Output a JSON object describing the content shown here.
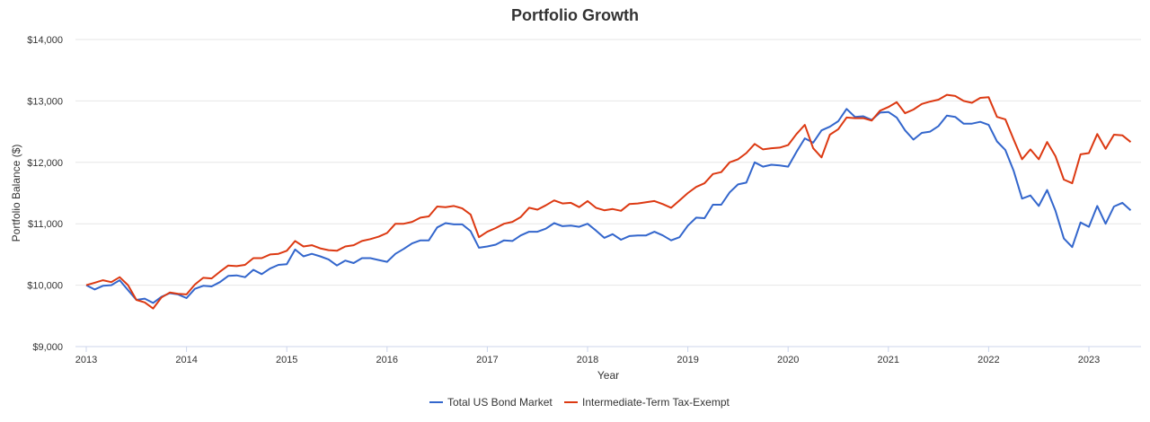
{
  "chart_data": {
    "type": "line",
    "title": "Portfolio Growth",
    "xlabel": "Year",
    "ylabel": "Portfolio Balance ($)",
    "ylim": [
      9000,
      14000
    ],
    "yticks": [
      "$9,000",
      "$10,000",
      "$11,000",
      "$12,000",
      "$13,000",
      "$14,000"
    ],
    "xticks": [
      "2013",
      "2014",
      "2015",
      "2016",
      "2017",
      "2018",
      "2019",
      "2020",
      "2021",
      "2022",
      "2023"
    ],
    "grid": true,
    "legend": "bottom",
    "start": "2013-01",
    "frequency": "monthly",
    "series": [
      {
        "name": "Total US Bond Market",
        "color": "#3366cc",
        "values": [
          10000,
          9930,
          9990,
          10000,
          10080,
          9920,
          9760,
          9780,
          9710,
          9810,
          9870,
          9850,
          9790,
          9940,
          9990,
          9980,
          10050,
          10150,
          10160,
          10130,
          10250,
          10180,
          10270,
          10330,
          10340,
          10580,
          10470,
          10510,
          10470,
          10420,
          10320,
          10400,
          10360,
          10440,
          10440,
          10410,
          10380,
          10510,
          10590,
          10680,
          10730,
          10730,
          10940,
          11010,
          10990,
          10990,
          10880,
          10610,
          10630,
          10660,
          10730,
          10720,
          10810,
          10870,
          10870,
          10920,
          11010,
          10960,
          10970,
          10950,
          11000,
          10890,
          10770,
          10830,
          10740,
          10800,
          10810,
          10810,
          10870,
          10810,
          10730,
          10780,
          10970,
          11100,
          11090,
          11310,
          11310,
          11510,
          11640,
          11670,
          12000,
          11930,
          11960,
          11950,
          11930,
          12170,
          12390,
          12320,
          12520,
          12580,
          12670,
          12870,
          12740,
          12750,
          12690,
          12810,
          12820,
          12730,
          12520,
          12370,
          12480,
          12500,
          12590,
          12760,
          12740,
          12630,
          12630,
          12660,
          12610,
          12340,
          12200,
          11860,
          11410,
          11460,
          11290,
          11550,
          11210,
          10760,
          10620,
          11020,
          10950,
          11290,
          11000,
          11280,
          11340,
          11220
        ]
      },
      {
        "name": "Intermediate-Term Tax-Exempt",
        "color": "#dc3912",
        "values": [
          10000,
          10040,
          10080,
          10050,
          10130,
          10000,
          9760,
          9720,
          9620,
          9800,
          9880,
          9860,
          9850,
          10010,
          10120,
          10110,
          10220,
          10320,
          10310,
          10330,
          10440,
          10440,
          10500,
          10510,
          10560,
          10720,
          10630,
          10650,
          10600,
          10570,
          10560,
          10630,
          10650,
          10720,
          10750,
          10790,
          10850,
          11000,
          11000,
          11030,
          11100,
          11120,
          11280,
          11270,
          11290,
          11250,
          11150,
          10780,
          10870,
          10930,
          11000,
          11030,
          11110,
          11260,
          11230,
          11300,
          11380,
          11330,
          11340,
          11270,
          11370,
          11260,
          11220,
          11240,
          11210,
          11320,
          11330,
          11350,
          11370,
          11320,
          11260,
          11380,
          11500,
          11600,
          11660,
          11810,
          11840,
          12000,
          12050,
          12150,
          12300,
          12210,
          12230,
          12240,
          12280,
          12460,
          12610,
          12230,
          12080,
          12450,
          12540,
          12730,
          12720,
          12720,
          12680,
          12840,
          12900,
          12980,
          12800,
          12860,
          12950,
          12990,
          13020,
          13100,
          13080,
          13000,
          12970,
          13050,
          13060,
          12740,
          12700,
          12370,
          12050,
          12210,
          12050,
          12330,
          12100,
          11720,
          11660,
          12130,
          12150,
          12460,
          12220,
          12450,
          12440,
          12330
        ]
      }
    ]
  }
}
